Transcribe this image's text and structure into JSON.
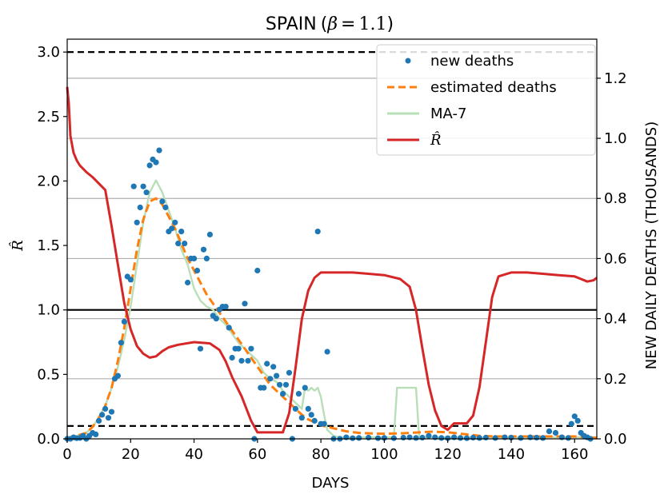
{
  "chart_data": {
    "type": "line",
    "title": "SPAIN (β = 1.1)",
    "title_parts": {
      "country": "SPAIN",
      "open": "(",
      "beta": "β",
      "eq": "=",
      "value": "1.1",
      "close": ")"
    },
    "xlabel": "DAYS",
    "ylabel_left": "R̂",
    "ylabel_right": "NEW DAILY DEATHS (THOUSANDS)",
    "xlim": [
      0,
      167
    ],
    "ylim_left": [
      0,
      3.1
    ],
    "ylim_right": [
      0,
      1.33
    ],
    "x_ticks": [
      "0",
      "20",
      "40",
      "60",
      "80",
      "100",
      "120",
      "140",
      "160"
    ],
    "y_left_ticks": [
      "0.0",
      "0.5",
      "1.0",
      "1.5",
      "2.0",
      "2.5",
      "3.0"
    ],
    "y_right_ticks": [
      "0.0",
      "0.2",
      "0.4",
      "0.6",
      "0.8",
      "1.0",
      "1.2"
    ],
    "reference_lines_left": [
      {
        "y": 3.0,
        "style": "dashed",
        "color": "#000000"
      },
      {
        "y": 1.0,
        "style": "solid",
        "color": "#000000"
      },
      {
        "y": 0.1,
        "style": "dashed",
        "color": "#000000"
      }
    ],
    "grid": "horizontal, right axis",
    "legend_position": "top-right",
    "legend": [
      {
        "label": "new deaths",
        "marker": "dot",
        "color": "#1f77b4"
      },
      {
        "label": "estimated deaths",
        "marker": "dashed-line",
        "color": "#ff7f0e"
      },
      {
        "label": "MA-7",
        "marker": "line",
        "color": "#b8dfb8"
      },
      {
        "label": "R̂",
        "marker": "line",
        "color": "#d62728"
      }
    ],
    "series": [
      {
        "name": "R̂",
        "axis": "left",
        "color": "#d62728",
        "x": [
          0,
          0.5,
          1,
          2,
          3,
          4,
          6,
          8,
          10,
          12,
          14,
          16,
          18,
          20,
          22,
          24,
          26,
          28,
          30,
          32,
          35,
          40,
          45,
          48,
          50,
          52,
          55,
          58,
          60,
          62,
          64,
          66,
          68,
          70,
          72,
          74,
          76,
          78,
          80,
          85,
          90,
          95,
          100,
          105,
          108,
          110,
          112,
          114,
          116,
          118,
          120,
          122,
          124,
          126,
          128,
          130,
          132,
          134,
          136,
          140,
          145,
          150,
          155,
          160,
          162,
          164,
          166,
          167
        ],
        "y": [
          2.73,
          2.6,
          2.35,
          2.22,
          2.16,
          2.12,
          2.07,
          2.03,
          1.98,
          1.93,
          1.65,
          1.35,
          1.05,
          0.85,
          0.72,
          0.66,
          0.63,
          0.64,
          0.68,
          0.71,
          0.73,
          0.75,
          0.74,
          0.69,
          0.6,
          0.48,
          0.33,
          0.14,
          0.05,
          0.05,
          0.05,
          0.05,
          0.05,
          0.2,
          0.55,
          0.93,
          1.15,
          1.25,
          1.29,
          1.29,
          1.29,
          1.28,
          1.27,
          1.24,
          1.18,
          1.0,
          0.7,
          0.42,
          0.22,
          0.1,
          0.07,
          0.12,
          0.12,
          0.12,
          0.18,
          0.4,
          0.75,
          1.1,
          1.26,
          1.29,
          1.29,
          1.28,
          1.27,
          1.26,
          1.24,
          1.22,
          1.23,
          1.25
        ]
      },
      {
        "name": "estimated deaths",
        "axis": "right",
        "color": "#ff7f0e",
        "x": [
          0,
          3,
          6,
          8,
          10,
          12,
          14,
          16,
          18,
          20,
          22,
          24,
          26,
          28,
          30,
          32,
          34,
          36,
          38,
          40,
          42,
          44,
          46,
          48,
          50,
          52,
          54,
          56,
          58,
          60,
          62,
          64,
          66,
          68,
          70,
          72,
          74,
          76,
          78,
          80,
          84,
          88,
          92,
          96,
          100,
          105,
          110,
          115,
          120,
          125,
          130,
          135,
          140,
          145,
          150,
          155,
          160,
          165,
          167
        ],
        "y": [
          0.0,
          0.01,
          0.02,
          0.04,
          0.07,
          0.11,
          0.17,
          0.26,
          0.37,
          0.5,
          0.63,
          0.73,
          0.79,
          0.8,
          0.78,
          0.74,
          0.7,
          0.65,
          0.6,
          0.56,
          0.52,
          0.48,
          0.45,
          0.42,
          0.39,
          0.36,
          0.33,
          0.3,
          0.27,
          0.24,
          0.21,
          0.18,
          0.16,
          0.14,
          0.12,
          0.1,
          0.08,
          0.065,
          0.055,
          0.045,
          0.035,
          0.025,
          0.02,
          0.018,
          0.017,
          0.018,
          0.021,
          0.024,
          0.022,
          0.016,
          0.01,
          0.008,
          0.008,
          0.008,
          0.008,
          0.008,
          0.008,
          0.005,
          0.003
        ]
      },
      {
        "name": "MA-7",
        "axis": "right",
        "color": "#b8dfb8",
        "x": [
          0,
          3,
          6,
          8,
          10,
          12,
          14,
          16,
          18,
          20,
          22,
          24,
          26,
          28,
          30,
          32,
          34,
          36,
          38,
          40,
          42,
          44,
          46,
          48,
          50,
          52,
          54,
          56,
          58,
          60,
          62,
          64,
          66,
          68,
          70,
          72,
          74,
          75,
          76,
          77,
          78,
          79,
          80,
          81,
          82,
          84,
          86,
          90,
          95,
          100,
          103,
          104,
          110,
          111,
          112,
          115,
          120,
          125,
          130,
          140,
          150,
          160,
          165,
          167
        ],
        "y": [
          0.0,
          0.01,
          0.02,
          0.04,
          0.07,
          0.11,
          0.17,
          0.24,
          0.33,
          0.44,
          0.58,
          0.72,
          0.82,
          0.86,
          0.82,
          0.76,
          0.7,
          0.63,
          0.58,
          0.5,
          0.46,
          0.44,
          0.43,
          0.4,
          0.38,
          0.35,
          0.32,
          0.3,
          0.28,
          0.26,
          0.22,
          0.2,
          0.19,
          0.16,
          0.14,
          0.12,
          0.1,
          0.17,
          0.16,
          0.17,
          0.16,
          0.17,
          0.14,
          0.08,
          0.03,
          0.01,
          0.005,
          0.005,
          0.005,
          0.005,
          0.005,
          0.17,
          0.17,
          0.005,
          0.005,
          0.005,
          0.005,
          0.005,
          0.005,
          0.005,
          0.005,
          0.005,
          0.005,
          0.005
        ]
      },
      {
        "name": "new deaths",
        "axis": "right",
        "color": "#1f77b4",
        "points": [
          [
            0,
            0.0
          ],
          [
            1,
            0.0
          ],
          [
            2,
            0.005
          ],
          [
            3,
            0.002
          ],
          [
            4,
            0.003
          ],
          [
            5,
            0.01
          ],
          [
            6,
            0.0
          ],
          [
            7,
            0.01
          ],
          [
            8,
            0.02
          ],
          [
            9,
            0.015
          ],
          [
            10,
            0.06
          ],
          [
            11,
            0.08
          ],
          [
            12,
            0.1
          ],
          [
            13,
            0.07
          ],
          [
            14,
            0.09
          ],
          [
            15,
            0.2
          ],
          [
            16,
            0.21
          ],
          [
            17,
            0.32
          ],
          [
            18,
            0.39
          ],
          [
            19,
            0.54
          ],
          [
            20,
            0.53
          ],
          [
            21,
            0.84
          ],
          [
            22,
            0.72
          ],
          [
            23,
            0.77
          ],
          [
            24,
            0.84
          ],
          [
            25,
            0.82
          ],
          [
            26,
            0.91
          ],
          [
            27,
            0.93
          ],
          [
            28,
            0.92
          ],
          [
            29,
            0.96
          ],
          [
            30,
            0.79
          ],
          [
            31,
            0.77
          ],
          [
            32,
            0.69
          ],
          [
            33,
            0.7
          ],
          [
            34,
            0.72
          ],
          [
            35,
            0.65
          ],
          [
            36,
            0.69
          ],
          [
            37,
            0.65
          ],
          [
            38,
            0.52
          ],
          [
            39,
            0.6
          ],
          [
            40,
            0.6
          ],
          [
            41,
            0.56
          ],
          [
            42,
            0.3
          ],
          [
            43,
            0.63
          ],
          [
            44,
            0.6
          ],
          [
            45,
            0.68
          ],
          [
            46,
            0.41
          ],
          [
            47,
            0.4
          ],
          [
            48,
            0.43
          ],
          [
            49,
            0.44
          ],
          [
            50,
            0.44
          ],
          [
            51,
            0.37
          ],
          [
            52,
            0.27
          ],
          [
            53,
            0.3
          ],
          [
            54,
            0.3
          ],
          [
            55,
            0.26
          ],
          [
            56,
            0.45
          ],
          [
            57,
            0.26
          ],
          [
            58,
            0.3
          ],
          [
            59,
            0.0
          ],
          [
            60,
            0.56
          ],
          [
            61,
            0.17
          ],
          [
            62,
            0.17
          ],
          [
            63,
            0.25
          ],
          [
            64,
            0.2
          ],
          [
            65,
            0.24
          ],
          [
            66,
            0.21
          ],
          [
            67,
            0.18
          ],
          [
            68,
            0.15
          ],
          [
            69,
            0.18
          ],
          [
            70,
            0.22
          ],
          [
            71,
            0.0
          ],
          [
            72,
            0.1
          ],
          [
            73,
            0.15
          ],
          [
            74,
            0.07
          ],
          [
            75,
            0.17
          ],
          [
            76,
            0.1
          ],
          [
            77,
            0.08
          ],
          [
            78,
            0.06
          ],
          [
            79,
            0.69
          ],
          [
            80,
            0.05
          ],
          [
            81,
            0.05
          ],
          [
            82,
            0.29
          ],
          [
            84,
            0.0
          ],
          [
            86,
            0.0
          ],
          [
            88,
            0.005
          ],
          [
            90,
            0.002
          ],
          [
            92,
            0.003
          ],
          [
            95,
            0.004
          ],
          [
            98,
            0.002
          ],
          [
            100,
            0.003
          ],
          [
            103,
            0.002
          ],
          [
            106,
            0.004
          ],
          [
            108,
            0.005
          ],
          [
            110,
            0.003
          ],
          [
            112,
            0.004
          ],
          [
            114,
            0.01
          ],
          [
            116,
            0.005
          ],
          [
            118,
            0.003
          ],
          [
            120,
            0.002
          ],
          [
            122,
            0.005
          ],
          [
            124,
            0.003
          ],
          [
            126,
            0.002
          ],
          [
            128,
            0.004
          ],
          [
            130,
            0.003
          ],
          [
            132,
            0.004
          ],
          [
            135,
            0.003
          ],
          [
            138,
            0.005
          ],
          [
            140,
            0.004
          ],
          [
            143,
            0.003
          ],
          [
            146,
            0.005
          ],
          [
            148,
            0.004
          ],
          [
            150,
            0.003
          ],
          [
            152,
            0.025
          ],
          [
            154,
            0.02
          ],
          [
            156,
            0.005
          ],
          [
            158,
            0.003
          ],
          [
            159,
            0.05
          ],
          [
            160,
            0.075
          ],
          [
            161,
            0.06
          ],
          [
            162,
            0.02
          ],
          [
            163,
            0.01
          ],
          [
            164,
            0.005
          ],
          [
            165,
            0.0
          ]
        ]
      }
    ]
  }
}
